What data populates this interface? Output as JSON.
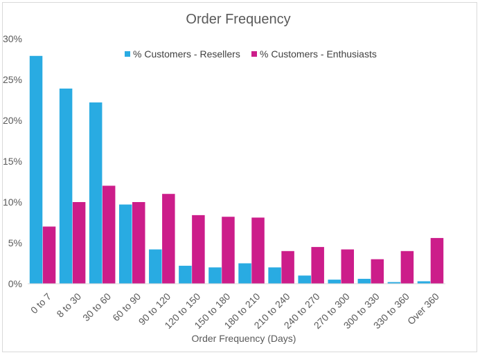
{
  "chart_data": {
    "type": "bar",
    "title": "Order Frequency",
    "xlabel": "Order Frequency (Days)",
    "ylabel": "",
    "ylim": [
      0,
      30
    ],
    "yticks": [
      "0%",
      "5%",
      "10%",
      "15%",
      "20%",
      "25%",
      "30%"
    ],
    "categories": [
      "0 to 7",
      "8 to 30",
      "30 to 60",
      "60 to 90",
      "90 to 120",
      "120 to 150",
      "150 to 180",
      "180 to 210",
      "210 to 240",
      "240 to 270",
      "270 to 300",
      "300 to 330",
      "330 to 360",
      "Over 360"
    ],
    "series": [
      {
        "name": "% Customers - Resellers",
        "color": "#29ABE2",
        "values": [
          27.9,
          23.9,
          22.2,
          9.7,
          4.2,
          2.2,
          2.0,
          2.5,
          2.0,
          1.0,
          0.5,
          0.6,
          0.2,
          0.3
        ]
      },
      {
        "name": "% Customers - Enthusiasts",
        "color": "#CC1D8A",
        "values": [
          7.0,
          10.0,
          12.0,
          10.0,
          11.0,
          8.4,
          8.2,
          8.1,
          4.0,
          4.5,
          4.2,
          3.0,
          4.0,
          5.6
        ]
      }
    ],
    "legend_position": "top",
    "grid": false
  }
}
